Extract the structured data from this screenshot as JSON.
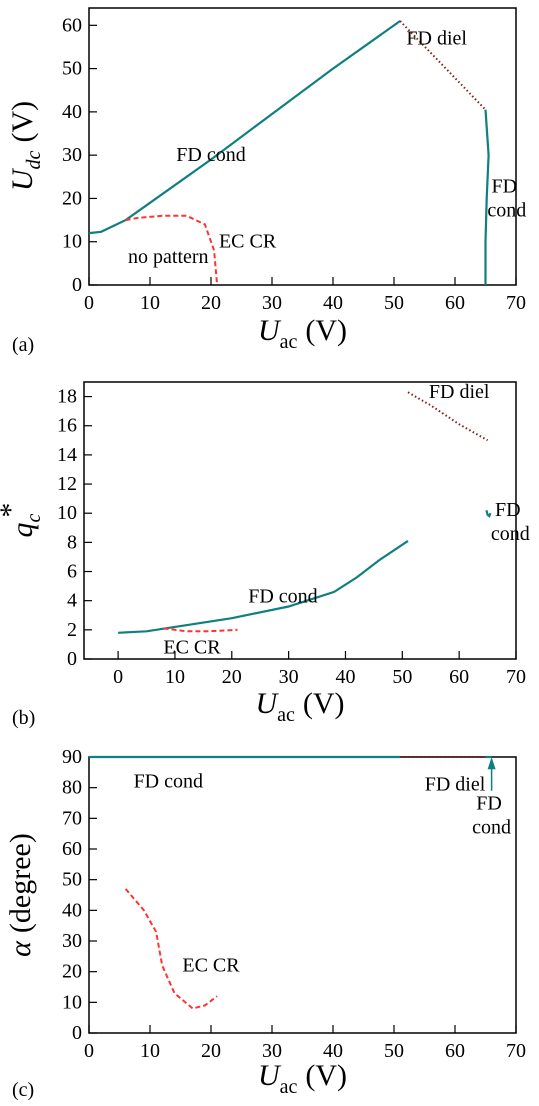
{
  "chart_data": [
    {
      "type": "line",
      "panel_label": "(a)",
      "xlabel": {
        "symbol": "U",
        "subscript": "ac",
        "unit": "(V)"
      },
      "ylabel": {
        "symbol": "U",
        "subscript": "dc",
        "unit": "(V)"
      },
      "xlim": [
        0,
        70
      ],
      "ylim": [
        0,
        64
      ],
      "xticks": [
        0,
        10,
        20,
        30,
        40,
        50,
        60,
        70
      ],
      "yticks": [
        0,
        10,
        20,
        30,
        40,
        50,
        60
      ],
      "note": "no pattern",
      "series": [
        {
          "name": "FD cond",
          "color": "#0f7f7f",
          "style": "solid",
          "x": [
            0,
            2,
            6,
            10,
            20,
            30,
            40,
            51
          ],
          "values": [
            12,
            12.3,
            15,
            19,
            29,
            39.5,
            50,
            61
          ]
        },
        {
          "name": "FD diel",
          "color": "#8b1a1a",
          "style": "dotted",
          "x": [
            51,
            65
          ],
          "values": [
            61,
            40.5
          ]
        },
        {
          "name": "FD cond",
          "color": "#0f7f7f",
          "style": "solid",
          "x": [
            65,
            65.5,
            65.2,
            65,
            65
          ],
          "values": [
            40.5,
            30,
            20,
            10,
            0
          ]
        },
        {
          "name": "EC CR",
          "color": "#ff3333",
          "style": "dashed",
          "x": [
            6,
            8,
            12,
            16,
            19,
            20.5,
            21
          ],
          "values": [
            15,
            15.5,
            16,
            16,
            14,
            8,
            0
          ]
        }
      ]
    },
    {
      "type": "line",
      "panel_label": "(b)",
      "xlabel": {
        "symbol": "U",
        "subscript": "ac",
        "unit": "(V)"
      },
      "ylabel": {
        "symbol": "q",
        "subscript": "c",
        "superscript": "*"
      },
      "xlim": [
        -6,
        70
      ],
      "ylim": [
        0,
        19
      ],
      "xticks": [
        0,
        10,
        20,
        30,
        40,
        50,
        60,
        70
      ],
      "yticks": [
        0,
        2,
        4,
        6,
        8,
        10,
        12,
        14,
        16,
        18
      ],
      "series": [
        {
          "name": "FD cond",
          "color": "#0f7f7f",
          "style": "solid",
          "x": [
            0,
            5,
            10,
            20,
            30,
            38,
            42,
            46,
            51
          ],
          "values": [
            1.8,
            1.9,
            2.2,
            2.8,
            3.6,
            4.6,
            5.6,
            6.8,
            8.1
          ]
        },
        {
          "name": "FD diel",
          "color": "#8b1a1a",
          "style": "dotted",
          "x": [
            51,
            55,
            60,
            65
          ],
          "values": [
            18.3,
            17.4,
            16.1,
            15
          ]
        },
        {
          "name": "FD cond",
          "color": "#0f7f7f",
          "style": "solid",
          "x": [
            64.8,
            65,
            65.3,
            65.5
          ],
          "values": [
            10.2,
            9.9,
            9.8,
            10
          ]
        },
        {
          "name": "EC CR",
          "color": "#ff3333",
          "style": "dashed",
          "x": [
            8,
            12,
            16,
            21
          ],
          "values": [
            2.1,
            1.9,
            1.9,
            2
          ]
        }
      ]
    },
    {
      "type": "line",
      "panel_label": "(c)",
      "xlabel": {
        "symbol": "U",
        "subscript": "ac",
        "unit": "(V)"
      },
      "ylabel": {
        "symbol": "α",
        "unit": "(degree)"
      },
      "xlim": [
        0,
        70
      ],
      "ylim": [
        0,
        90
      ],
      "xticks": [
        0,
        10,
        20,
        30,
        40,
        50,
        60,
        70
      ],
      "yticks": [
        0,
        10,
        20,
        30,
        40,
        50,
        60,
        70,
        80,
        90
      ],
      "series": [
        {
          "name": "FD cond",
          "color": "#0f7f7f",
          "style": "solid",
          "x": [
            0,
            51
          ],
          "values": [
            90,
            90
          ]
        },
        {
          "name": "FD diel",
          "color": "#8b1a1a",
          "style": "dotted",
          "x": [
            51,
            65
          ],
          "values": [
            90,
            90
          ]
        },
        {
          "name": "FD cond",
          "color": "#0f7f7f",
          "style": "solid",
          "x": [
            65,
            66
          ],
          "values": [
            90,
            90
          ]
        },
        {
          "name": "EC CR",
          "color": "#ff3333",
          "style": "dashed",
          "x": [
            6,
            9,
            11,
            12,
            14,
            17,
            19,
            21
          ],
          "values": [
            47,
            40,
            33,
            22,
            13,
            8,
            9,
            12
          ]
        }
      ]
    }
  ]
}
